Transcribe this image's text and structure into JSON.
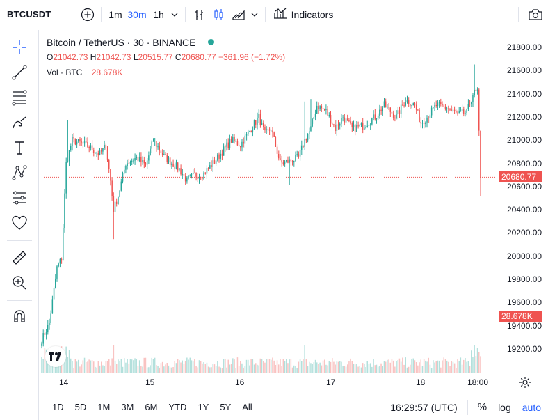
{
  "topbar": {
    "symbol": "BTCUSDT",
    "intervals": [
      "1m",
      "30m",
      "1h"
    ],
    "active_interval": "30m",
    "indicators_label": "Indicators"
  },
  "legend": {
    "title": "Bitcoin / TetherUS · 30 · BINANCE",
    "o_label": "O",
    "o_value": "21042.73",
    "h_label": "H",
    "h_value": "21042.73",
    "l_label": "L",
    "l_value": "20515.77",
    "c_label": "C",
    "c_value": "20680.77",
    "change": "−361.96 (−1.72%)",
    "vol_label": "Vol · BTC",
    "vol_value": "28.678K"
  },
  "price_axis": {
    "ticks": [
      "21800.00",
      "21600.00",
      "21400.00",
      "21200.00",
      "21000.00",
      "20800.00",
      "20600.00",
      "20400.00",
      "20200.00",
      "20000.00",
      "19800.00",
      "19600.00",
      "19400.00",
      "19200.00"
    ],
    "last_price_tag": "20680.77",
    "volume_tag": "28.678K"
  },
  "time_axis": {
    "labels": [
      "14",
      "15",
      "16",
      "17",
      "18",
      "18:00"
    ]
  },
  "bottombar": {
    "ranges": [
      "1D",
      "5D",
      "1M",
      "3M",
      "6M",
      "YTD",
      "1Y",
      "5Y",
      "All"
    ],
    "clock": "16:29:57 (UTC)",
    "percent": "%",
    "log": "log",
    "auto": "auto"
  },
  "colors": {
    "up": "#26a69a",
    "down": "#ef5350",
    "accent": "#2962ff",
    "dot_green": "#26a69a"
  },
  "chart_data": {
    "type": "candlestick",
    "interval": "30m",
    "ylim": [
      19100,
      21900
    ],
    "x_days": [
      "14",
      "15",
      "16",
      "17",
      "18"
    ],
    "anchors": [
      {
        "i": 0,
        "price": 19280
      },
      {
        "i": 5,
        "price": 19420
      },
      {
        "i": 10,
        "price": 19900
      },
      {
        "i": 13,
        "price": 19980
      },
      {
        "i": 16,
        "price": 20800
      },
      {
        "i": 20,
        "price": 21000
      },
      {
        "i": 30,
        "price": 20950
      },
      {
        "i": 38,
        "price": 20880
      },
      {
        "i": 42,
        "price": 20950
      },
      {
        "i": 45,
        "price": 20650
      },
      {
        "i": 47,
        "price": 20400
      },
      {
        "i": 50,
        "price": 20520
      },
      {
        "i": 55,
        "price": 20800
      },
      {
        "i": 62,
        "price": 20850
      },
      {
        "i": 68,
        "price": 20780
      },
      {
        "i": 73,
        "price": 21000
      },
      {
        "i": 80,
        "price": 20860
      },
      {
        "i": 90,
        "price": 20750
      },
      {
        "i": 95,
        "price": 20650
      },
      {
        "i": 100,
        "price": 20700
      },
      {
        "i": 105,
        "price": 20700
      },
      {
        "i": 112,
        "price": 20800
      },
      {
        "i": 118,
        "price": 20900
      },
      {
        "i": 124,
        "price": 21000
      },
      {
        "i": 130,
        "price": 20960
      },
      {
        "i": 137,
        "price": 21100
      },
      {
        "i": 142,
        "price": 21200
      },
      {
        "i": 146,
        "price": 21050
      },
      {
        "i": 150,
        "price": 21100
      },
      {
        "i": 156,
        "price": 20800
      },
      {
        "i": 162,
        "price": 20820
      },
      {
        "i": 168,
        "price": 20850
      },
      {
        "i": 172,
        "price": 21000
      },
      {
        "i": 176,
        "price": 21100
      },
      {
        "i": 180,
        "price": 21300
      },
      {
        "i": 186,
        "price": 21250
      },
      {
        "i": 192,
        "price": 21100
      },
      {
        "i": 197,
        "price": 21200
      },
      {
        "i": 203,
        "price": 21100
      },
      {
        "i": 210,
        "price": 21120
      },
      {
        "i": 218,
        "price": 21200
      },
      {
        "i": 224,
        "price": 21300
      },
      {
        "i": 232,
        "price": 21200
      },
      {
        "i": 238,
        "price": 21350
      },
      {
        "i": 244,
        "price": 21300
      },
      {
        "i": 248,
        "price": 21150
      },
      {
        "i": 252,
        "price": 21200
      },
      {
        "i": 258,
        "price": 21300
      },
      {
        "i": 265,
        "price": 21280
      },
      {
        "i": 272,
        "price": 21220
      },
      {
        "i": 278,
        "price": 21240
      },
      {
        "i": 282,
        "price": 21400
      },
      {
        "i": 285,
        "price": 21420
      },
      {
        "i": 287,
        "price": 20680
      }
    ],
    "candle_count": 288,
    "last_close": 20680.77
  }
}
